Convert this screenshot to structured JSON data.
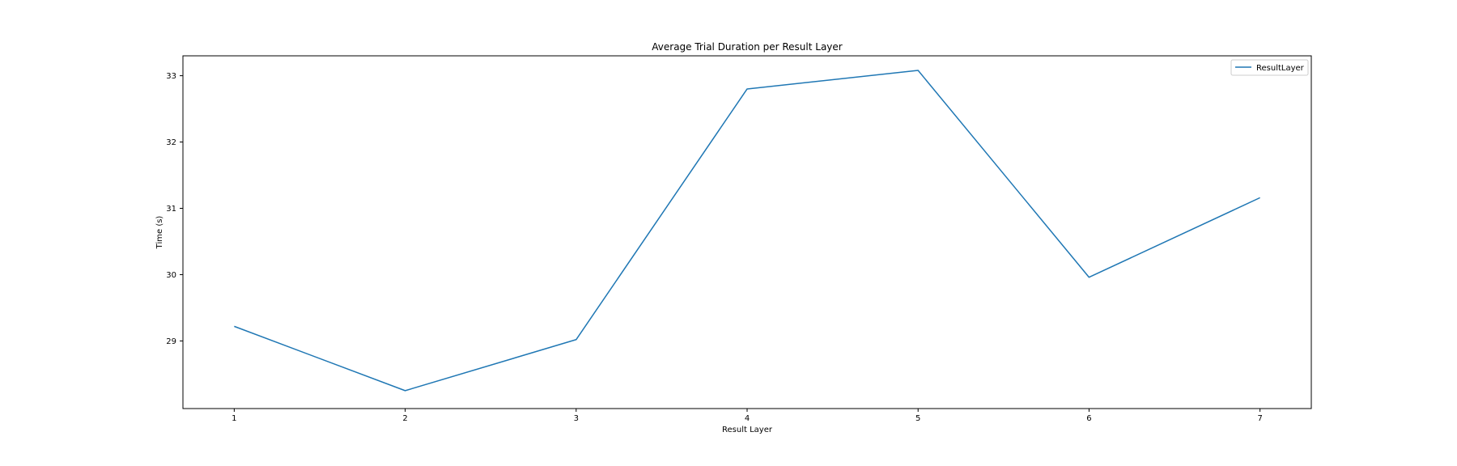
{
  "chart_data": {
    "type": "line",
    "title": "Average Trial Duration per Result Layer",
    "xlabel": "Result Layer",
    "ylabel": "Time (s)",
    "x": [
      1,
      2,
      3,
      4,
      5,
      6,
      7
    ],
    "x_ticks": [
      "1",
      "2",
      "3",
      "4",
      "5",
      "6",
      "7"
    ],
    "y_ticks": [
      "29",
      "30",
      "31",
      "32",
      "33"
    ],
    "xlim": [
      0.7,
      7.3
    ],
    "ylim": [
      27.98,
      33.3
    ],
    "grid": false,
    "legend": "top-right",
    "series": [
      {
        "name": "ResultLayer",
        "color": "#1f77b4",
        "values": [
          29.22,
          28.25,
          29.02,
          32.8,
          33.08,
          29.96,
          31.16
        ]
      }
    ]
  }
}
